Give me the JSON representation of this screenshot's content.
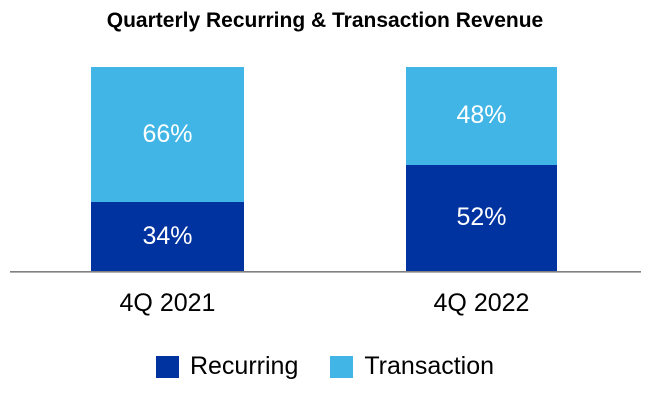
{
  "chart_data": {
    "type": "bar",
    "stacked": true,
    "title": "Quarterly Recurring & Transaction Revenue",
    "categories": [
      "4Q 2021",
      "4Q 2022"
    ],
    "series": [
      {
        "name": "Recurring",
        "color": "#0033A0",
        "values": [
          34,
          52
        ],
        "labels": [
          "34%",
          "52%"
        ]
      },
      {
        "name": "Transaction",
        "color": "#41B6E6",
        "values": [
          66,
          48
        ],
        "labels": [
          "66%",
          "48%"
        ]
      }
    ],
    "ylim": [
      0,
      100
    ],
    "unit": "%",
    "grid": false,
    "y_axis_visible": false,
    "legend_position": "bottom",
    "data_label_color": "#FFFFFF"
  },
  "colors": {
    "recurring": "#0033A0",
    "transaction": "#41B6E6",
    "axis_line": "#808080",
    "title_text": "#000000",
    "background": "#FFFFFF"
  }
}
